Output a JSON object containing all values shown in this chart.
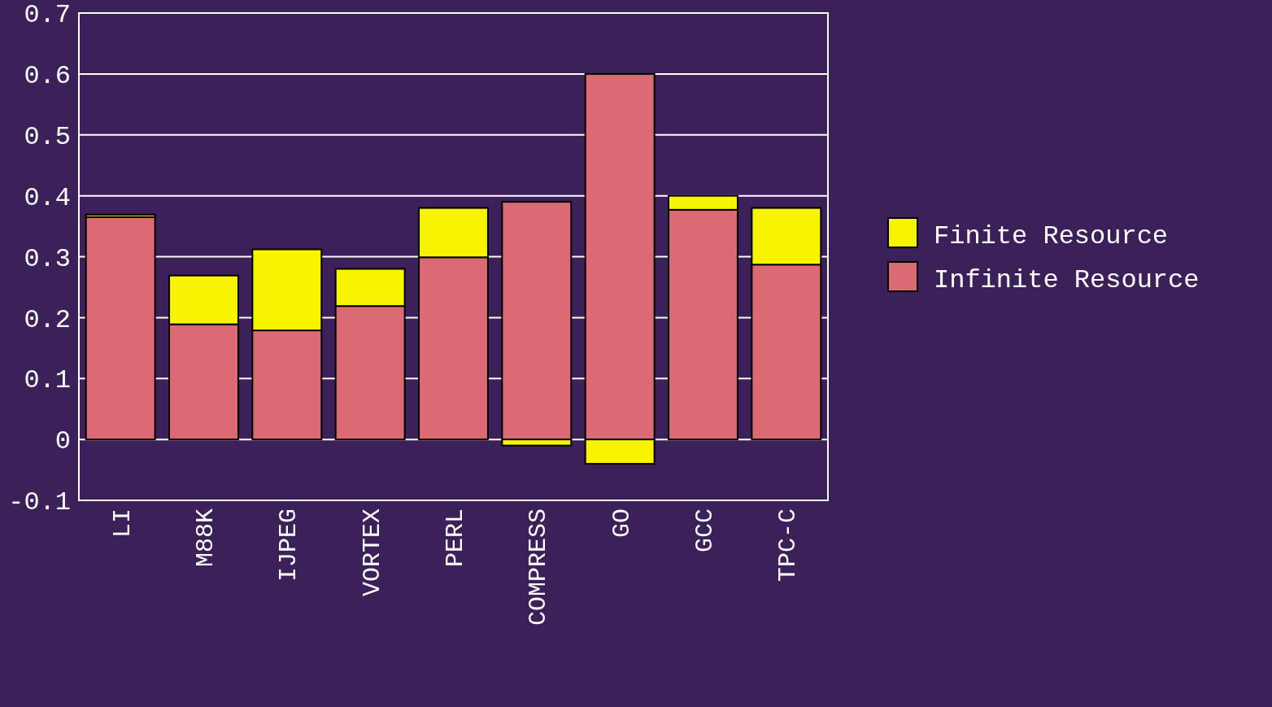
{
  "chart_data": {
    "type": "bar",
    "stacked": true,
    "categories": [
      "LI",
      "M88K",
      "IJPEG",
      "VORTEX",
      "PERL",
      "COMPRESS",
      "GO",
      "GCC",
      "TPC-C"
    ],
    "series": [
      {
        "name": "Infinite Resource",
        "color": "#dc6a74",
        "values": [
          0.365,
          0.189,
          0.179,
          0.219,
          0.299,
          0.39,
          0.6,
          0.377,
          0.287
        ]
      },
      {
        "name": "Finite Resource",
        "color": "#f8f400",
        "values": [
          0.004,
          0.08,
          0.133,
          0.061,
          0.081,
          -0.01,
          -0.04,
          0.023,
          0.093
        ]
      }
    ],
    "ylim": [
      -0.1,
      0.7
    ],
    "yticks": [
      -0.1,
      0,
      0.1,
      0.2,
      0.3,
      0.4,
      0.5,
      0.6,
      0.7
    ],
    "grid": "y",
    "legend": "right"
  }
}
